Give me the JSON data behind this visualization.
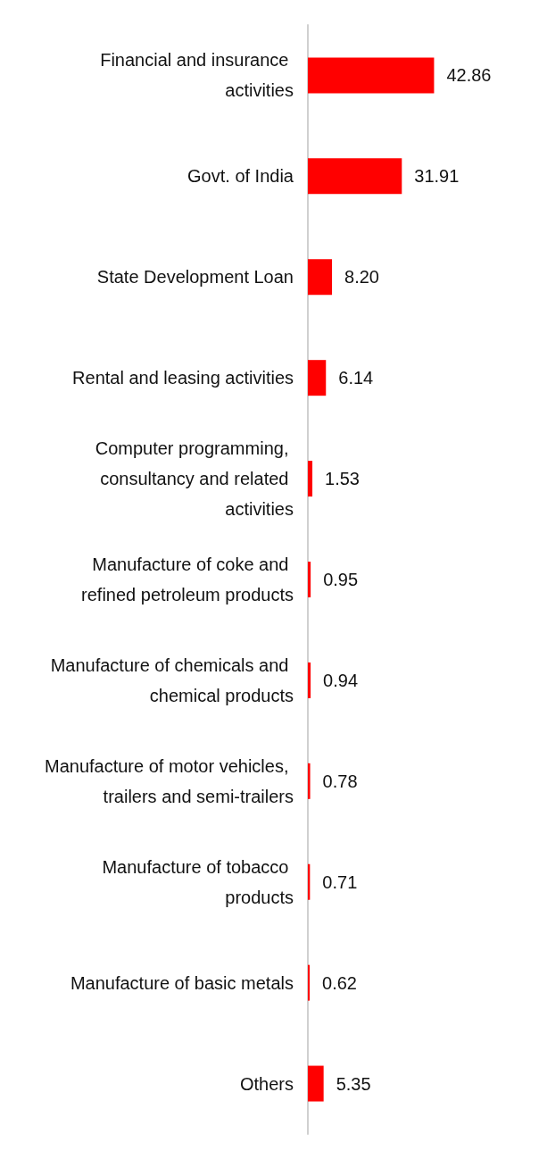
{
  "chart_data": {
    "type": "bar",
    "orientation": "horizontal",
    "categories": [
      "Financial and insurance activities",
      "Govt. of India",
      "State Development Loan",
      "Rental and leasing activities",
      "Computer programming, consultancy and related activities",
      "Manufacture of coke and refined petroleum products",
      "Manufacture of chemicals and chemical products",
      "Manufacture of motor vehicles, trailers and semi-trailers",
      "Manufacture of tobacco products",
      "Manufacture of basic metals",
      "Others"
    ],
    "values": [
      42.86,
      31.91,
      8.2,
      6.14,
      1.53,
      0.95,
      0.94,
      0.78,
      0.71,
      0.62,
      5.35
    ],
    "value_labels": [
      "42.86",
      "31.91",
      "8.20",
      "6.14",
      "1.53",
      "0.95",
      "0.94",
      "0.78",
      "0.71",
      "0.62",
      "5.35"
    ],
    "color": "#ff0000"
  }
}
